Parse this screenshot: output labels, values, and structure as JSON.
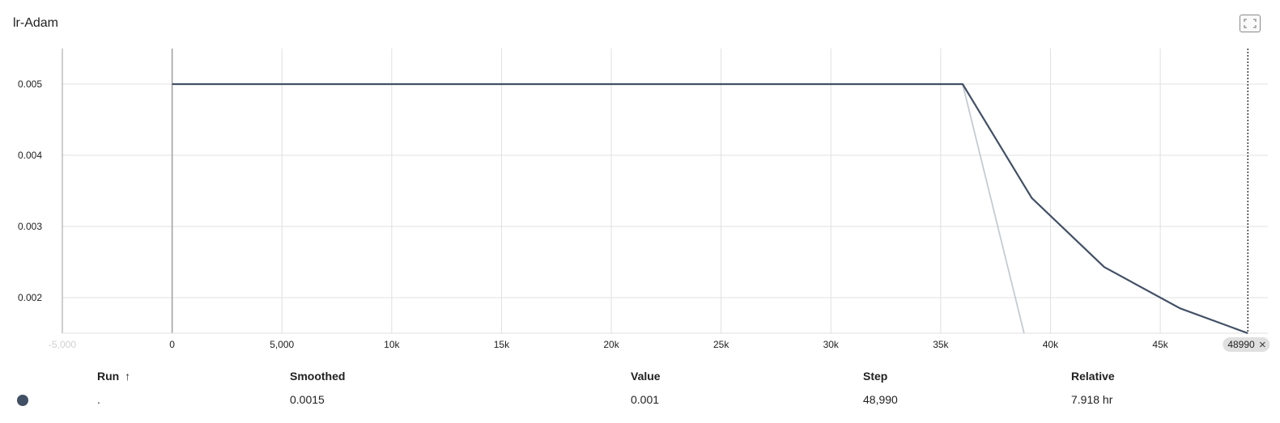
{
  "title": "lr-Adam",
  "fullscreen_icon": "fullscreen-icon",
  "chart_data": {
    "type": "line",
    "title": "lr-Adam",
    "xlabel": "",
    "ylabel": "",
    "xlim": [
      -5000,
      49900
    ],
    "ylim": [
      0.0015,
      0.0055
    ],
    "x_ticks": [
      0,
      5000,
      10000,
      15000,
      20000,
      25000,
      30000,
      35000,
      40000,
      45000
    ],
    "x_tick_labels": [
      "0",
      "5,000",
      "10k",
      "15k",
      "20k",
      "25k",
      "30k",
      "35k",
      "40k",
      "45k"
    ],
    "x_tick_faded_label": "-5,000",
    "y_ticks": [
      0.002,
      0.003,
      0.004,
      0.005
    ],
    "y_tick_labels": [
      "0.002",
      "0.003",
      "0.004",
      "0.005"
    ],
    "grid": true,
    "legend": "none",
    "series": [
      {
        "role": "smoothed",
        "color": "#425066",
        "x": [
          0,
          36000,
          39150,
          42450,
          45900,
          48990
        ],
        "y": [
          0.005,
          0.005,
          0.0034,
          0.00243,
          0.00185,
          0.0015
        ]
      },
      {
        "role": "raw",
        "color": "#c5cbd3",
        "x": [
          0,
          36000,
          38800
        ],
        "y": [
          0.005,
          0.005,
          0.0015
        ]
      }
    ],
    "cursor_step": 48990,
    "cursor_label": "48990"
  },
  "table": {
    "headers": {
      "run": "Run",
      "sort_icon": "↑",
      "smoothed": "Smoothed",
      "value": "Value",
      "step": "Step",
      "relative": "Relative"
    },
    "rows": [
      {
        "color": "#425066",
        "run": ".",
        "smoothed": "0.0015",
        "value": "0.001",
        "step": "48,990",
        "relative": "7.918 hr"
      }
    ]
  }
}
